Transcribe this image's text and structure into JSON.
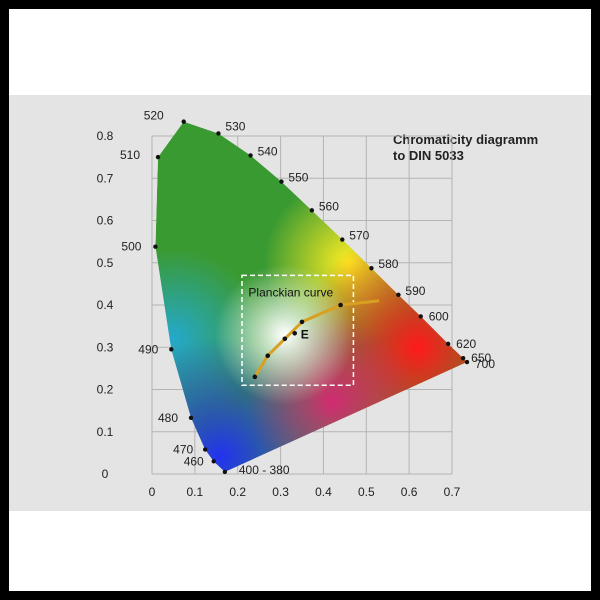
{
  "chart_data": {
    "type": "scatter",
    "title_lines": [
      "Chromaticity diagramm",
      "to DIN 5033"
    ],
    "xlabel": "",
    "ylabel": "",
    "xlim": [
      0,
      0.7
    ],
    "ylim": [
      0,
      0.8
    ],
    "x_ticks": [
      "0",
      "0.1",
      "0.2",
      "0.3",
      "0.4",
      "0.5",
      "0.6",
      "0.7"
    ],
    "y_ticks": [
      "0",
      "0.1",
      "0.2",
      "0.3",
      "0.4",
      "0.5",
      "0.6",
      "0.7",
      "0.8"
    ],
    "grid": true,
    "spectral_locus": [
      {
        "label": "400 - 380",
        "x": 0.17,
        "y": 0.005
      },
      {
        "label": "460",
        "x": 0.144,
        "y": 0.03
      },
      {
        "label": "470",
        "x": 0.124,
        "y": 0.058
      },
      {
        "label": "480",
        "x": 0.091,
        "y": 0.133
      },
      {
        "label": "490",
        "x": 0.045,
        "y": 0.295
      },
      {
        "label": "500",
        "x": 0.008,
        "y": 0.538
      },
      {
        "label": "510",
        "x": 0.014,
        "y": 0.75
      },
      {
        "label": "520",
        "x": 0.074,
        "y": 0.834
      },
      {
        "label": "530",
        "x": 0.155,
        "y": 0.806
      },
      {
        "label": "540",
        "x": 0.23,
        "y": 0.754
      },
      {
        "label": "550",
        "x": 0.302,
        "y": 0.692
      },
      {
        "label": "560",
        "x": 0.373,
        "y": 0.624
      },
      {
        "label": "570",
        "x": 0.444,
        "y": 0.555
      },
      {
        "label": "580",
        "x": 0.512,
        "y": 0.487
      },
      {
        "label": "590",
        "x": 0.575,
        "y": 0.424
      },
      {
        "label": "600",
        "x": 0.627,
        "y": 0.373
      },
      {
        "label": "620",
        "x": 0.691,
        "y": 0.308
      },
      {
        "label": "650",
        "x": 0.726,
        "y": 0.274
      },
      {
        "label": "700",
        "x": 0.735,
        "y": 0.265
      }
    ],
    "planckian_curve": {
      "label": "Planckian curve",
      "points": [
        {
          "x": 0.24,
          "y": 0.23
        },
        {
          "x": 0.27,
          "y": 0.28
        },
        {
          "x": 0.31,
          "y": 0.32
        },
        {
          "x": 0.35,
          "y": 0.36
        },
        {
          "x": 0.44,
          "y": 0.4
        },
        {
          "x": 0.53,
          "y": 0.41
        }
      ]
    },
    "white_point": {
      "label": "E",
      "x": 0.333,
      "y": 0.333
    },
    "inset_box": {
      "x0": 0.21,
      "x1": 0.47,
      "y0": 0.21,
      "y1": 0.47
    }
  }
}
